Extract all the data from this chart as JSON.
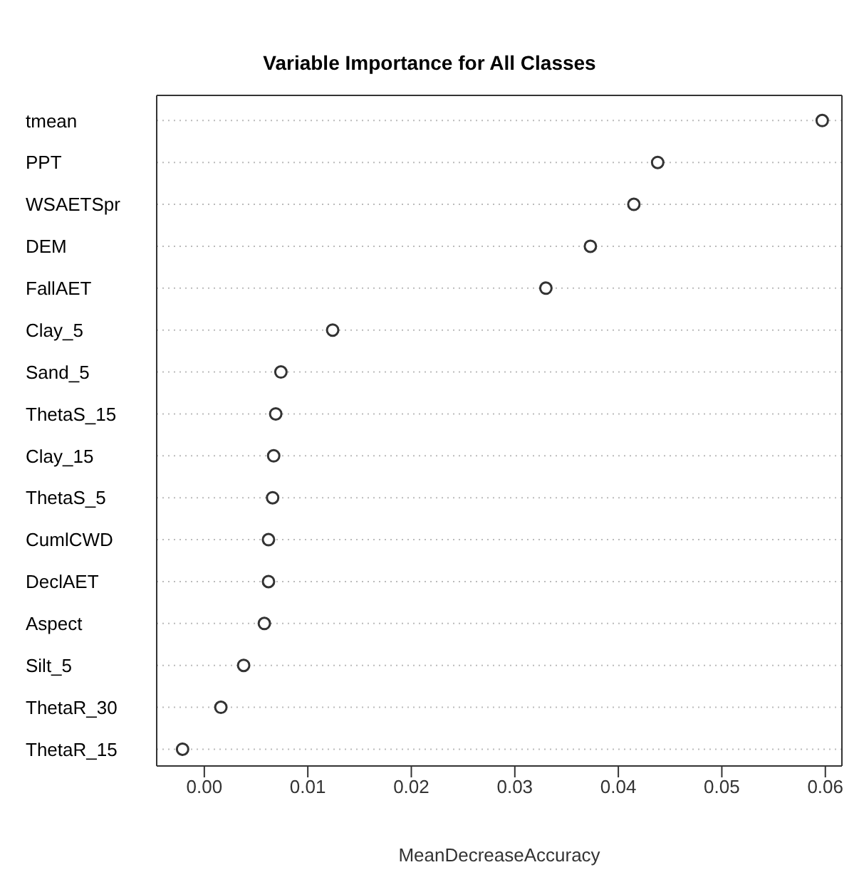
{
  "chart_data": {
    "type": "scatter",
    "orientation": "horizontal",
    "title": "Variable Importance for All Classes",
    "xlabel": "MeanDecreaseAccuracy",
    "categories": [
      "tmean",
      "PPT",
      "WSAETSpr",
      "DEM",
      "FallAET",
      "Clay_5",
      "Sand_5",
      "ThetaS_15",
      "Clay_15",
      "ThetaS_5",
      "CumlCWD",
      "DeclAET",
      "Aspect",
      "Silt_5",
      "ThetaR_30",
      "ThetaR_15"
    ],
    "values": [
      0.0597,
      0.0438,
      0.0415,
      0.0373,
      0.033,
      0.0124,
      0.0074,
      0.0069,
      0.0067,
      0.0066,
      0.0062,
      0.0062,
      0.0058,
      0.0038,
      0.0016,
      -0.0021
    ],
    "color": "#333333",
    "marker": "circle",
    "grid": "y",
    "xlim": [
      -0.0046,
      0.0616
    ],
    "xticks": [
      {
        "value": 0,
        "label": "0.00"
      },
      {
        "value": 0.01,
        "label": "0.01"
      },
      {
        "value": 0.02,
        "label": "0.02"
      },
      {
        "value": 0.03,
        "label": "0.03"
      },
      {
        "value": 0.04,
        "label": "0.04"
      },
      {
        "value": 0.05,
        "label": "0.05"
      },
      {
        "value": 0.06,
        "label": "0.06"
      }
    ]
  }
}
